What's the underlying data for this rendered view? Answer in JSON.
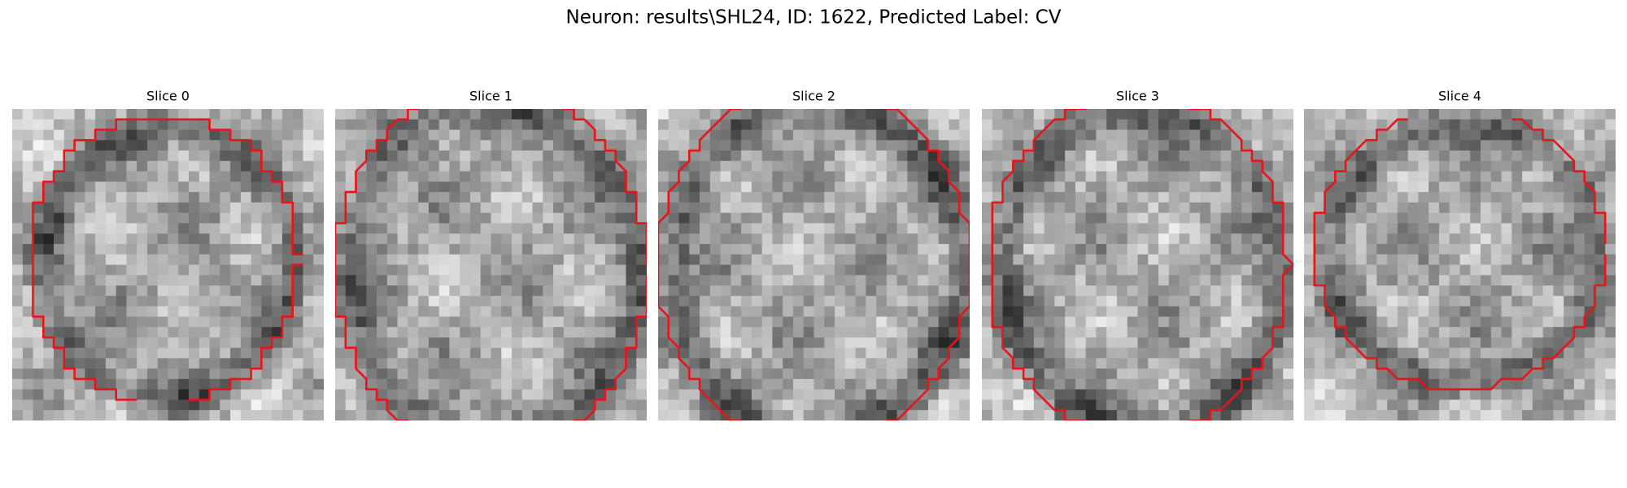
{
  "title": "Neuron: results\\SHL24, ID: 1622, Predicted Label: CV",
  "panels": [
    {
      "title": "Slice 0"
    },
    {
      "title": "Slice 1"
    },
    {
      "title": "Slice 2"
    },
    {
      "title": "Slice 3"
    },
    {
      "title": "Slice 4"
    }
  ]
}
